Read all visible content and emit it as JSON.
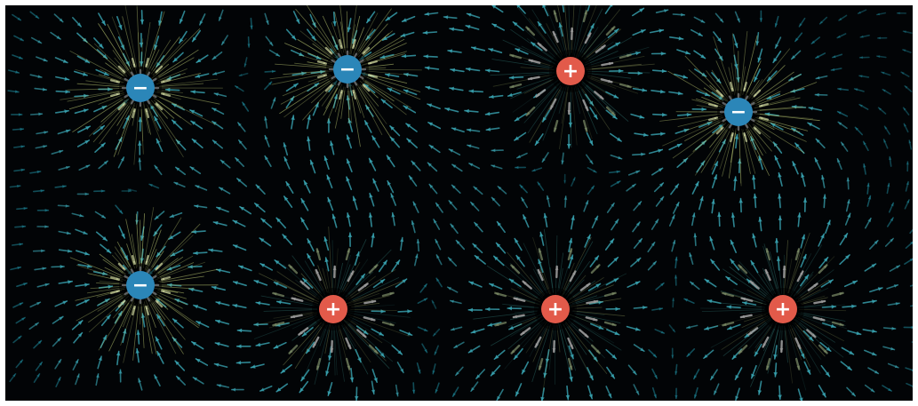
{
  "scene": {
    "background_color": "#020406",
    "field_color": "#1f8a9c",
    "field_color_strong": "#3aa6b4",
    "near_neg_color": "#c9d67a",
    "near_pos_color": "#a8b46a"
  },
  "charges": [
    {
      "id": "neg-1",
      "sign": "-",
      "label": "−",
      "color": "#2b86b8"
    },
    {
      "id": "neg-2",
      "sign": "-",
      "label": "−",
      "color": "#2b86b8"
    },
    {
      "id": "pos-1",
      "sign": "+",
      "label": "+",
      "color": "#e25a4a"
    },
    {
      "id": "neg-3",
      "sign": "-",
      "label": "−",
      "color": "#2b86b8"
    },
    {
      "id": "neg-4",
      "sign": "-",
      "label": "−",
      "color": "#2b86b8"
    },
    {
      "id": "pos-2",
      "sign": "+",
      "label": "+",
      "color": "#e25a4a"
    },
    {
      "id": "pos-3",
      "sign": "+",
      "label": "+",
      "color": "#e25a4a"
    },
    {
      "id": "pos-4",
      "sign": "+",
      "label": "+",
      "color": "#e25a4a"
    }
  ]
}
